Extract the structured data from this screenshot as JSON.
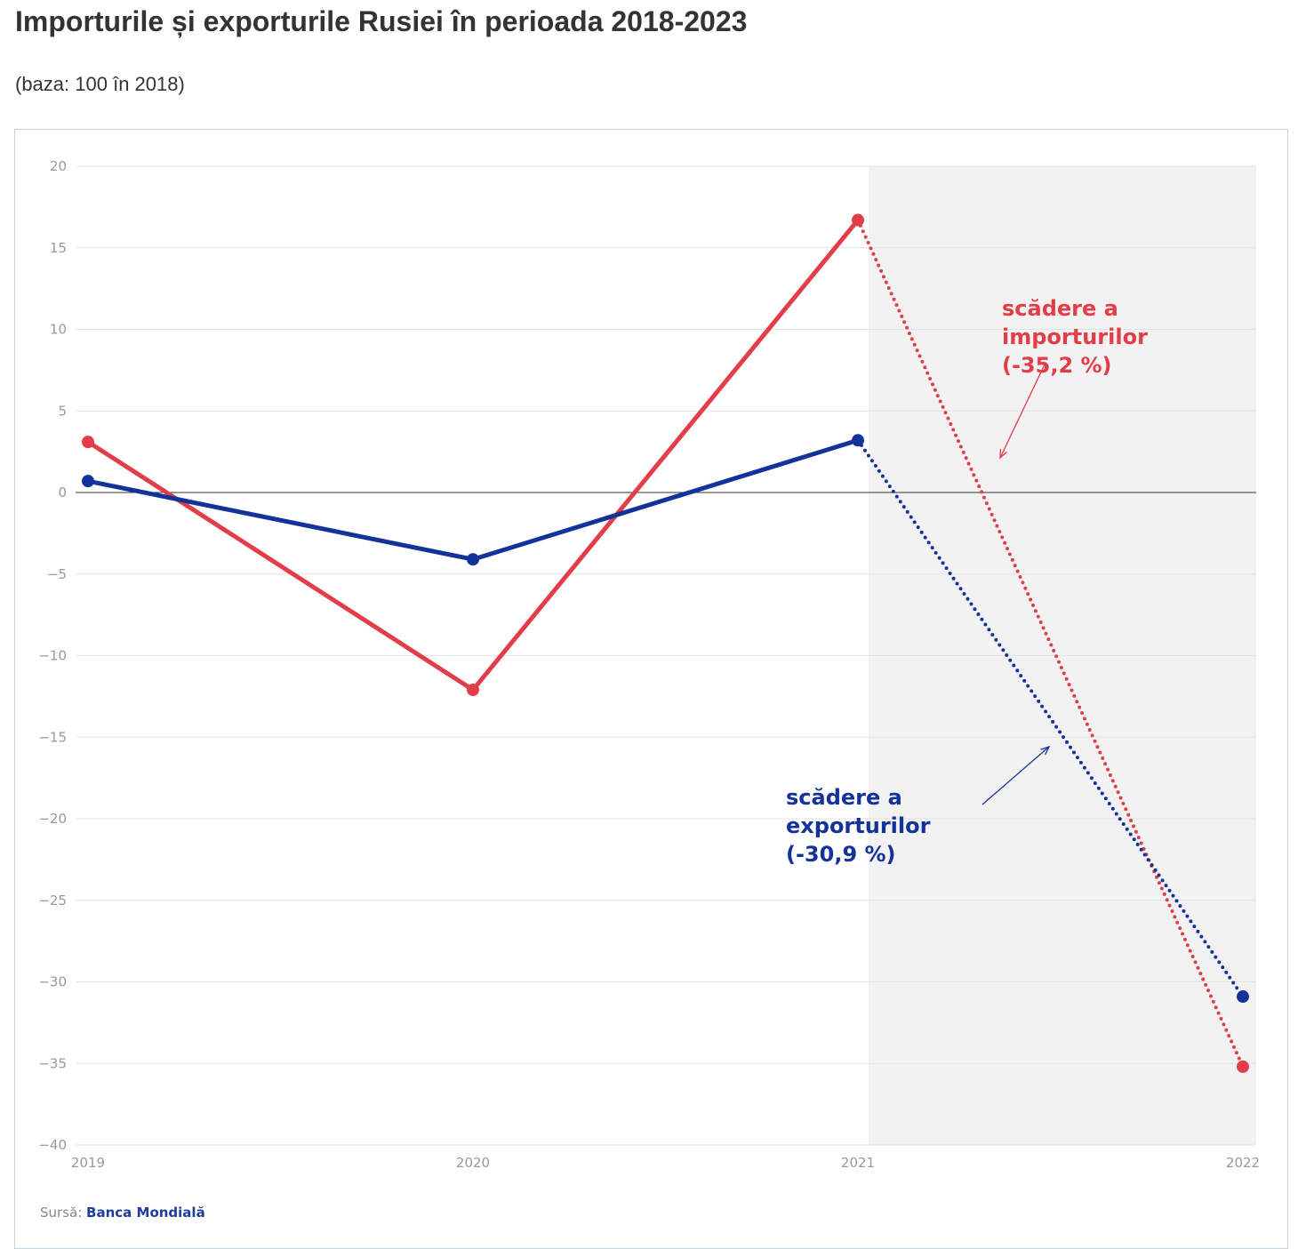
{
  "title": "Importurile și exporturile Rusiei în perioada 2018-2023",
  "subtitle": "(baza: 100 în 2018)",
  "source_label": "Sursă:",
  "source_name": "Banca Mondială",
  "colors": {
    "imports": "#e23d48",
    "exports": "#14339a",
    "shade": "#f2f2f2"
  },
  "chart_data": {
    "type": "line",
    "categories": [
      "2019",
      "2020",
      "2021",
      "2022"
    ],
    "ylim": [
      -40,
      20
    ],
    "yticks": [
      20,
      15,
      10,
      5,
      0,
      -5,
      -10,
      -15,
      -20,
      -25,
      -30,
      -35,
      -40
    ],
    "grid": true,
    "series": [
      {
        "key": "imports",
        "values": [
          3.1,
          -12.1,
          16.7,
          -35.2
        ],
        "dotted_last_segment": true
      },
      {
        "key": "exports",
        "values": [
          0.7,
          -4.1,
          3.2,
          -30.9
        ],
        "dotted_last_segment": true
      }
    ],
    "shaded_region": [
      "2021",
      "2022"
    ],
    "annotations": [
      {
        "series": "imports",
        "lines": [
          "scădere a",
          "importurilor",
          "(-35,2 %)"
        ]
      },
      {
        "series": "exports",
        "lines": [
          "scădere a",
          "exporturilor",
          "(-30,9 %)"
        ]
      }
    ]
  }
}
